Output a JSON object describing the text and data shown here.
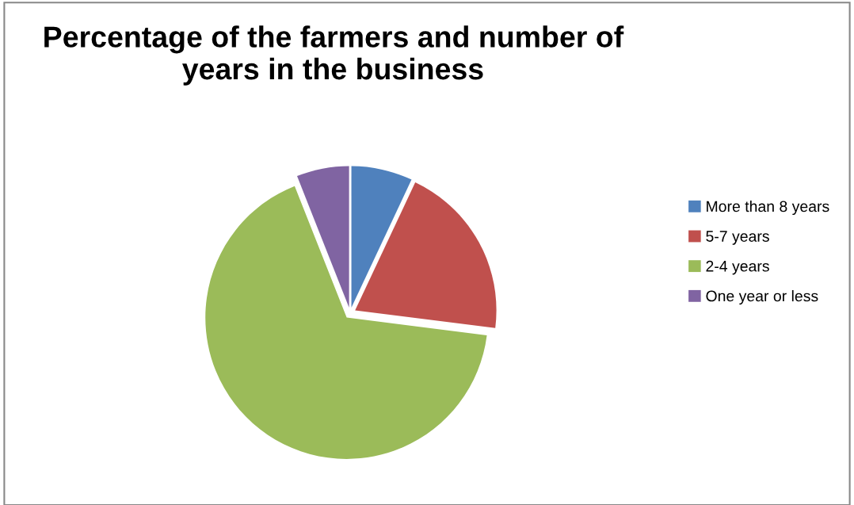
{
  "chart_data": {
    "type": "pie",
    "title": "Percentage of the farmers and number of years in the business",
    "categories": [
      "More than 8 years",
      "5-7 years",
      "2-4 years",
      "One year or less"
    ],
    "values": [
      7,
      20,
      67,
      6
    ],
    "colors": [
      "#4f81bd",
      "#c0504d",
      "#9bbb59",
      "#8064a2"
    ],
    "legend": "right"
  }
}
